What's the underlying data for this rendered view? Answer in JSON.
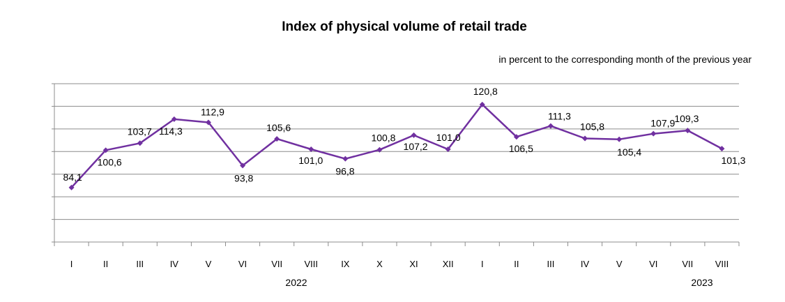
{
  "chart_data": {
    "type": "line",
    "title": "Index of physical volume of retail trade",
    "subtitle": "in percent to the corresponding month of the previous year",
    "categories": [
      "I",
      "II",
      "III",
      "IV",
      "V",
      "VI",
      "VII",
      "VIII",
      "IX",
      "X",
      "XI",
      "XII",
      "I",
      "II",
      "III",
      "IV",
      "V",
      "VI",
      "VII",
      "VIII"
    ],
    "year_labels": [
      {
        "label": "2022",
        "from": 0,
        "to": 11
      },
      {
        "label": "2023",
        "from": 12,
        "to": 19
      }
    ],
    "series": [
      {
        "values": [
          84.1,
          100.6,
          103.7,
          114.3,
          112.9,
          93.8,
          105.6,
          101.0,
          96.8,
          100.8,
          107.2,
          101.0,
          120.8,
          106.5,
          111.3,
          105.8,
          105.4,
          107.9,
          109.3,
          101.3
        ],
        "labels": [
          "84,1",
          "100,6",
          "103,7",
          "114,3",
          "112,9",
          "93,8",
          "105,6",
          "101,0",
          "96,8",
          "100,8",
          "107,2",
          "101,0",
          "120,8",
          "106,5",
          "111,3",
          "105,8",
          "105,4",
          "107,9",
          "109,3",
          "101,3"
        ],
        "color": "#7030A0"
      }
    ],
    "ylim": [
      60,
      130
    ],
    "grid": true
  }
}
